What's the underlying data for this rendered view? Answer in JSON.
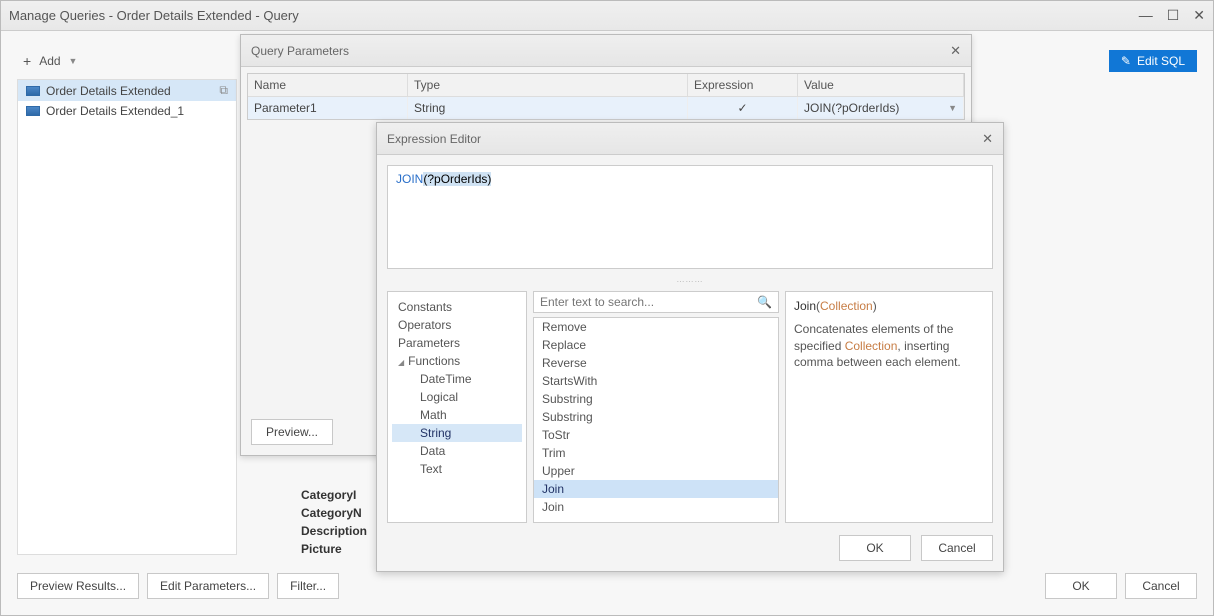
{
  "main": {
    "title": "Manage Queries - Order Details Extended - Query",
    "add_label": "Add",
    "edit_sql_label": "Edit SQL"
  },
  "tree": {
    "items": [
      {
        "label": "Order Details Extended",
        "selected": true
      },
      {
        "label": "Order Details Extended_1",
        "selected": false
      }
    ]
  },
  "mid_labels": [
    "CategoryI",
    "CategoryN",
    "Description",
    "Picture"
  ],
  "bottom": {
    "preview_results": "Preview Results...",
    "edit_params": "Edit Parameters...",
    "filter": "Filter...",
    "ok": "OK",
    "cancel": "Cancel"
  },
  "qp": {
    "title": "Query Parameters",
    "cols": [
      "Name",
      "Type",
      "Expression",
      "Value"
    ],
    "row": {
      "name": "Parameter1",
      "type": "String",
      "expr_checked": true,
      "value": "JOIN(?pOrderIds)"
    },
    "preview": "Preview..."
  },
  "ee": {
    "title": "Expression Editor",
    "expr_kw": "JOIN",
    "expr_rest": "(?pOrderIds)",
    "tree": {
      "top": [
        "Constants",
        "Operators",
        "Parameters"
      ],
      "functions_label": "Functions",
      "children": [
        "DateTime",
        "Logical",
        "Math",
        "String",
        "Data",
        "Text"
      ],
      "selected": "String"
    },
    "search_placeholder": "Enter text to search...",
    "list": [
      "Remove",
      "Replace",
      "Reverse",
      "StartsWith",
      "Substring",
      "Substring",
      "ToStr",
      "Trim",
      "Upper",
      "Join",
      "Join"
    ],
    "list_selected_index": 9,
    "desc_fn": "Join",
    "desc_arg": "Collection",
    "desc_text_1": "Concatenates elements of the specified ",
    "desc_text_2": ", inserting comma between each element.",
    "ok": "OK",
    "cancel": "Cancel"
  }
}
